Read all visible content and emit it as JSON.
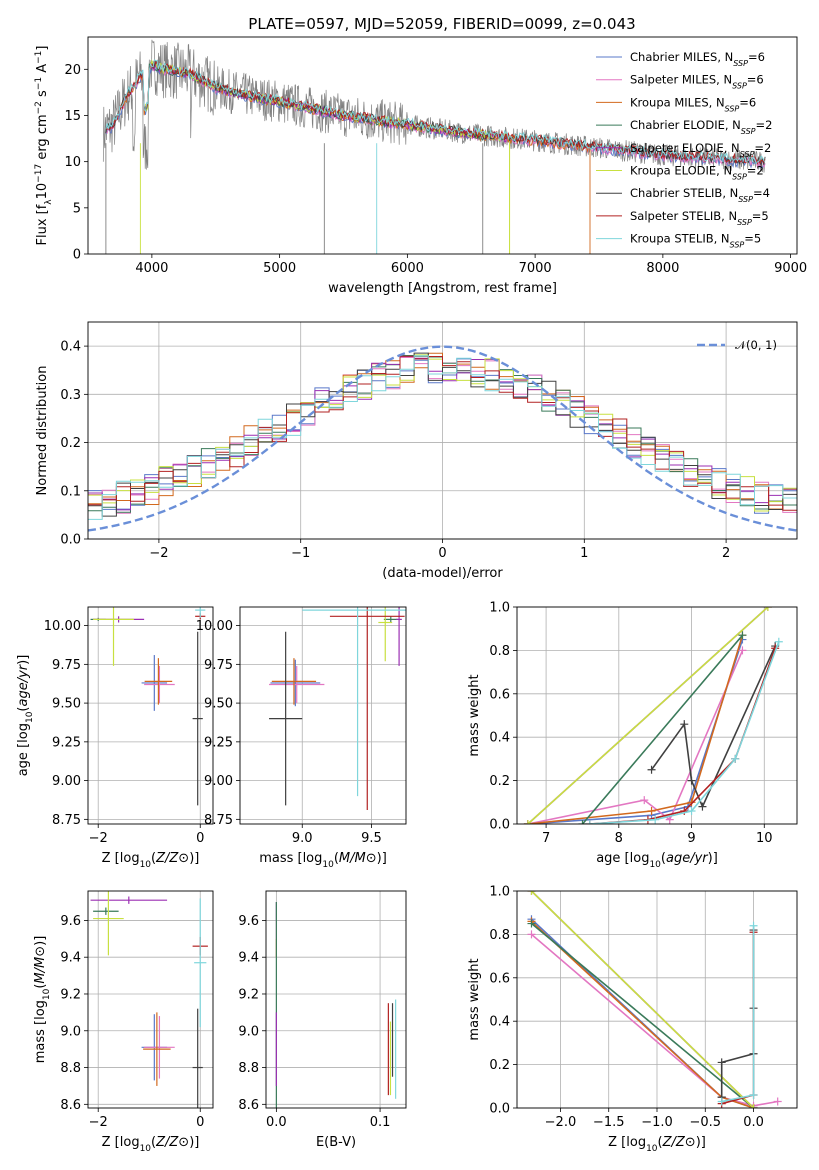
{
  "figure": {
    "title": "PLATE=0597, MJD=52059, FIBERID=0099, z=0.043"
  },
  "colors": {
    "Chabrier MILES": "#5a78c9",
    "Salpeter MILES": "#e377c2",
    "Kroupa MILES": "#d2691e",
    "Chabrier ELODIE": "#3a7a5a",
    "Salpeter ELODIE": "#9b2fb3",
    "Kroupa ELODIE": "#c8e040",
    "Chabrier STELIB": "#404040",
    "Salpeter STELIB": "#b22222",
    "Kroupa STELIB": "#7fd6dc",
    "normal": "#6a8fd8",
    "data": "#808080"
  },
  "chart_data": [
    {
      "id": "spectrum",
      "type": "line",
      "title": "PLATE=0597, MJD=52059, FIBERID=0099, z=0.043",
      "xlabel": "wavelength [Angstrom, rest frame]",
      "ylabel": "Flux [f_λ 10^-17 erg cm^-2 s^-1 A^-1]",
      "xlim": [
        3500,
        9050
      ],
      "ylim": [
        0,
        23.5
      ],
      "xticks": [
        4000,
        5000,
        6000,
        7000,
        8000,
        9000
      ],
      "yticks": [
        0,
        5,
        10,
        15,
        20
      ],
      "legend_position": "top-right",
      "series": [
        {
          "name": "Chabrier MILES, N_SSP=6"
        },
        {
          "name": "Salpeter MILES, N_SSP=6"
        },
        {
          "name": "Kroupa MILES, N_SSP=6"
        },
        {
          "name": "Chabrier ELODIE, N_SSP=2"
        },
        {
          "name": "Salpeter ELODIE, N_SSP=2"
        },
        {
          "name": "Kroupa ELODIE, N_SSP=2"
        },
        {
          "name": "Chabrier STELIB, N_SSP=4"
        },
        {
          "name": "Salpeter STELIB, N_SSP=5"
        },
        {
          "name": "Kroupa STELIB, N_SSP=5"
        }
      ],
      "continuum": {
        "x": [
          3600,
          3700,
          3800,
          3900,
          4000,
          4100,
          4300,
          4500,
          4800,
          5000,
          5500,
          6000,
          6500,
          7000,
          7500,
          8000,
          8500,
          8800
        ],
        "y": [
          13,
          14,
          17,
          19,
          20.5,
          20,
          19.5,
          18,
          17,
          16.5,
          15,
          14,
          13,
          12.3,
          11.5,
          10.7,
          10.2,
          10
        ]
      }
    },
    {
      "id": "residuals",
      "type": "line",
      "xlabel": "(data-model)/error",
      "ylabel": "Normed distribution",
      "xlim": [
        -2.5,
        2.5
      ],
      "ylim": [
        0,
        0.45
      ],
      "xticks": [
        -2,
        -1,
        0,
        1,
        2
      ],
      "yticks": [
        0.0,
        0.1,
        0.2,
        0.3,
        0.4
      ],
      "grid": true,
      "legend_position": "top-right",
      "reference": {
        "name": "𝒩(0, 1)",
        "mean": 0,
        "sigma": 1
      }
    },
    {
      "id": "age_vs_Z",
      "type": "scatter",
      "xlabel": "Z [log10(Z/Z⊙)]",
      "ylabel": "age  [log10(age/yr)]",
      "xlim": [
        -2.2,
        0.25
      ],
      "ylim": [
        8.72,
        10.12
      ],
      "xticks": [
        -2,
        0
      ],
      "yticks": [
        8.75,
        9.0,
        9.25,
        9.5,
        9.75,
        10.0
      ],
      "grid": true,
      "points": [
        {
          "x": -0.9,
          "y": 9.63,
          "xerr": 0.25,
          "yerr": 0.18
        },
        {
          "x": -0.8,
          "y": 9.62,
          "xerr": 0.3,
          "yerr": 0.12
        },
        {
          "x": -0.82,
          "y": 9.64,
          "xerr": 0.27,
          "yerr": 0.15
        },
        {
          "x": -2.0,
          "y": 10.04,
          "xerr": 0.15,
          "yerr": 0.01
        },
        {
          "x": -1.6,
          "y": 10.04,
          "xerr": 0.5,
          "yerr": 0.02
        },
        {
          "x": -1.7,
          "y": 10.04,
          "xerr": 0.4,
          "yerr": 0.3
        },
        {
          "x": -0.05,
          "y": 9.4,
          "xerr": 0.1,
          "yerr": 0.56
        },
        {
          "x": 0.0,
          "y": 10.06,
          "xerr": 0.1,
          "yerr": 0.02
        },
        {
          "x": 0.0,
          "y": 10.1,
          "xerr": 0.1,
          "yerr": 0.05
        }
      ]
    },
    {
      "id": "age_vs_mass",
      "type": "scatter",
      "xlabel": "mass [log10(M/M⊙)]",
      "ylabel": "",
      "xlim": [
        8.55,
        9.75
      ],
      "ylim": [
        8.72,
        10.12
      ],
      "xticks": [
        9.0,
        9.5
      ],
      "yticks": [
        8.75,
        9.0,
        9.25,
        9.5,
        9.75,
        10.0
      ],
      "grid": true,
      "points": [
        {
          "x": 8.95,
          "y": 9.63,
          "xerr": 0.18,
          "yerr": 0.15
        },
        {
          "x": 8.96,
          "y": 9.62,
          "xerr": 0.2,
          "yerr": 0.12
        },
        {
          "x": 8.94,
          "y": 9.64,
          "xerr": 0.16,
          "yerr": 0.15
        },
        {
          "x": 9.64,
          "y": 10.04,
          "xerr": 0.05,
          "yerr": 0.02
        },
        {
          "x": 9.7,
          "y": 10.04,
          "xerr": 0.02,
          "yerr": 0.3
        },
        {
          "x": 9.6,
          "y": 10.02,
          "xerr": 0.05,
          "yerr": 0.25
        },
        {
          "x": 8.88,
          "y": 9.4,
          "xerr": 0.12,
          "yerr": 0.56
        },
        {
          "x": 9.47,
          "y": 10.06,
          "xerr": 0.27,
          "yerr": 1.25
        },
        {
          "x": 9.4,
          "y": 10.1,
          "xerr": 0.4,
          "yerr": 1.2
        }
      ]
    },
    {
      "id": "mass_weight_vs_age",
      "type": "line",
      "xlabel": "age  [log10(age/yr)]",
      "ylabel": "mass weight",
      "xlim": [
        6.6,
        10.45
      ],
      "ylim": [
        0,
        1
      ],
      "xticks": [
        7,
        8,
        9,
        10
      ],
      "yticks": [
        0.0,
        0.2,
        0.4,
        0.6,
        0.8,
        1.0
      ],
      "grid": true,
      "series": [
        {
          "name": "Chabrier MILES",
          "x": [
            6.75,
            8.45,
            8.95,
            9.7
          ],
          "y": [
            0.0,
            0.04,
            0.08,
            0.85
          ]
        },
        {
          "name": "Salpeter MILES",
          "x": [
            6.75,
            8.35,
            8.7,
            9.7
          ],
          "y": [
            0.0,
            0.11,
            0.02,
            0.8
          ]
        },
        {
          "name": "Kroupa MILES",
          "x": [
            6.75,
            8.45,
            9.0,
            9.7
          ],
          "y": [
            0.0,
            0.06,
            0.1,
            0.87
          ]
        },
        {
          "name": "Chabrier ELODIE",
          "x": [
            7.5,
            9.7
          ],
          "y": [
            0.0,
            0.87
          ]
        },
        {
          "name": "Salpeter ELODIE",
          "x": [
            6.75,
            10.05
          ],
          "y": [
            0.0,
            1.0
          ]
        },
        {
          "name": "Kroupa ELODIE",
          "x": [
            6.75,
            10.05
          ],
          "y": [
            0.0,
            1.0
          ]
        },
        {
          "name": "Chabrier STELIB",
          "x": [
            8.45,
            8.9,
            9.0,
            9.15,
            10.15
          ],
          "y": [
            0.25,
            0.46,
            0.2,
            0.08,
            0.82
          ]
        },
        {
          "name": "Salpeter STELIB",
          "x": [
            7.6,
            8.4,
            8.9,
            9.6,
            10.15
          ],
          "y": [
            0.0,
            0.02,
            0.06,
            0.3,
            0.81
          ]
        },
        {
          "name": "Kroupa STELIB",
          "x": [
            7.6,
            8.5,
            9.0,
            9.6,
            10.2
          ],
          "y": [
            0.0,
            0.02,
            0.06,
            0.3,
            0.84
          ]
        }
      ]
    },
    {
      "id": "mass_vs_Z",
      "type": "scatter",
      "xlabel": "Z [log10(Z/Z⊙)]",
      "ylabel": "mass [log10(M/M⊙)]",
      "xlim": [
        -2.2,
        0.25
      ],
      "ylim": [
        8.58,
        9.76
      ],
      "xticks": [
        -2,
        0
      ],
      "yticks": [
        8.6,
        8.8,
        9.0,
        9.2,
        9.4,
        9.6
      ],
      "grid": true,
      "points": [
        {
          "x": -0.9,
          "y": 8.91,
          "xerr": 0.25,
          "yerr": 0.18
        },
        {
          "x": -0.8,
          "y": 8.91,
          "xerr": 0.3,
          "yerr": 0.17
        },
        {
          "x": -0.85,
          "y": 8.9,
          "xerr": 0.27,
          "yerr": 0.2
        },
        {
          "x": -1.85,
          "y": 9.65,
          "xerr": 0.25,
          "yerr": 0.02
        },
        {
          "x": -1.4,
          "y": 9.71,
          "xerr": 0.75,
          "yerr": 0.02
        },
        {
          "x": -1.8,
          "y": 9.61,
          "xerr": 0.3,
          "yerr": 0.2
        },
        {
          "x": -0.05,
          "y": 8.8,
          "xerr": 0.1,
          "yerr": 0.32
        },
        {
          "x": 0.0,
          "y": 9.46,
          "xerr": 0.15,
          "yerr": 0.05
        },
        {
          "x": 0.0,
          "y": 9.37,
          "xerr": 0.12,
          "yerr": 0.35
        }
      ]
    },
    {
      "id": "mass_vs_ebv",
      "type": "scatter",
      "xlabel": "E(B-V)",
      "ylabel": "",
      "xlim": [
        -0.01,
        0.125
      ],
      "ylim": [
        8.58,
        9.76
      ],
      "xticks": [
        0.0,
        0.1
      ],
      "yticks": [
        8.6,
        8.8,
        9.0,
        9.2,
        9.4,
        9.6
      ],
      "grid": true,
      "points": [
        {
          "x": 0.0,
          "y": 9.65,
          "yerr": 0.05
        },
        {
          "x": 0.0,
          "y": 9.6,
          "yerr": 0.1
        },
        {
          "x": 0.0,
          "y": 9.45,
          "yerr": 0.05
        },
        {
          "x": 0.0,
          "y": 9.1,
          "yerr": 0.6
        },
        {
          "x": 0.0,
          "y": 8.9,
          "yerr": 0.2
        },
        {
          "x": 0.11,
          "y": 8.85,
          "yerr": 0.2
        },
        {
          "x": 0.112,
          "y": 8.95,
          "yerr": 0.2
        },
        {
          "x": 0.108,
          "y": 8.9,
          "yerr": 0.25
        },
        {
          "x": 0.115,
          "y": 8.9,
          "yerr": 0.27
        }
      ]
    },
    {
      "id": "mass_weight_vs_Z",
      "type": "line",
      "xlabel": "Z [log10(Z/Z⊙)]",
      "ylabel": "mass weight",
      "xlim": [
        -2.45,
        0.45
      ],
      "ylim": [
        0,
        1
      ],
      "xticks": [
        -2.0,
        -1.5,
        -1.0,
        -0.5,
        0.0
      ],
      "yticks": [
        0.0,
        0.2,
        0.4,
        0.6,
        0.8,
        1.0
      ],
      "grid": true,
      "series": [
        {
          "name": "Chabrier MILES",
          "x": [
            -2.3,
            -0.33,
            0.0
          ],
          "y": [
            0.87,
            0.05,
            0.0
          ]
        },
        {
          "name": "Salpeter MILES",
          "x": [
            -2.3,
            -0.33,
            0.0,
            0.25
          ],
          "y": [
            0.8,
            0.05,
            0.01,
            0.03
          ]
        },
        {
          "name": "Kroupa MILES",
          "x": [
            -2.3,
            -0.33,
            0.0
          ],
          "y": [
            0.86,
            0.05,
            0.0
          ]
        },
        {
          "name": "Chabrier ELODIE",
          "x": [
            -2.3,
            0.0
          ],
          "y": [
            0.85,
            0.0
          ]
        },
        {
          "name": "Salpeter ELODIE",
          "x": [
            -2.3,
            0.0
          ],
          "y": [
            1.0,
            0.0
          ]
        },
        {
          "name": "Kroupa ELODIE",
          "x": [
            -2.3,
            0.0
          ],
          "y": [
            1.0,
            0.0
          ]
        },
        {
          "name": "Chabrier STELIB",
          "x": [
            -0.33,
            -0.33,
            0.0,
            0.0,
            0.0
          ],
          "y": [
            0.05,
            0.21,
            0.25,
            0.46,
            0.82
          ]
        },
        {
          "name": "Salpeter STELIB",
          "x": [
            -0.33,
            0.0,
            0.0
          ],
          "y": [
            0.02,
            0.06,
            0.81
          ]
        },
        {
          "name": "Kroupa STELIB",
          "x": [
            -0.33,
            0.0,
            0.0
          ],
          "y": [
            0.03,
            0.06,
            0.84
          ]
        }
      ]
    }
  ]
}
